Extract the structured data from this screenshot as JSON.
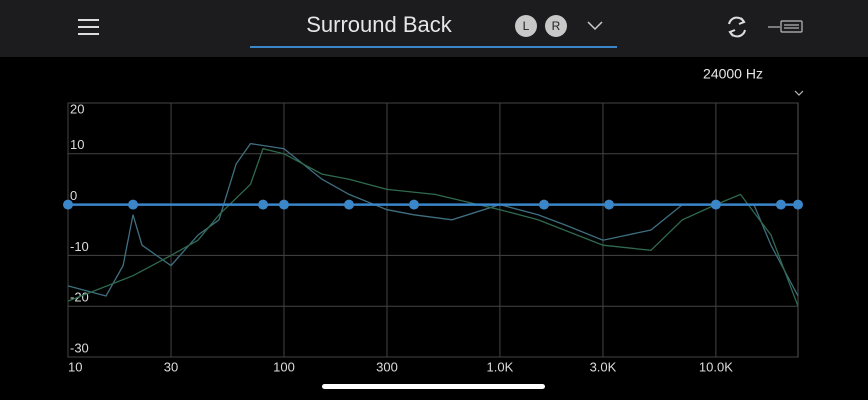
{
  "header": {
    "title": "Surround Back",
    "channels": [
      "L",
      "R"
    ]
  },
  "frequency_label": "24000 Hz",
  "chart_data": {
    "type": "line",
    "log_x": true,
    "grid": true,
    "xlim": [
      10,
      24000
    ],
    "xticks": [
      10,
      30,
      100,
      300,
      {
        "value": 1000,
        "label": "1.0K"
      },
      {
        "value": 3000,
        "label": "3.0K"
      },
      {
        "value": 10000,
        "label": "10.0K"
      }
    ],
    "ylim": [
      -30,
      20
    ],
    "yticks": [
      20,
      10,
      0,
      -10,
      -20,
      -30
    ],
    "series": [
      {
        "color": "#3f6f80",
        "x": [
          10,
          15,
          18,
          20,
          22,
          30,
          40,
          50,
          60,
          70,
          100,
          150,
          200,
          300,
          400,
          600,
          1000,
          1500,
          2000,
          3000,
          5000,
          7000,
          10000,
          15000,
          18000,
          24000
        ],
        "values": [
          -16,
          -18,
          -12,
          -2,
          -8,
          -12,
          -6,
          -3,
          8,
          12,
          11,
          5,
          2,
          -1,
          -2,
          -3,
          0,
          -2,
          -4,
          -7,
          -5,
          0,
          0,
          0,
          -8,
          -18
        ]
      },
      {
        "color": "#2f6a4f",
        "x": [
          10,
          20,
          30,
          40,
          50,
          70,
          80,
          100,
          150,
          200,
          300,
          500,
          1000,
          1500,
          3000,
          5000,
          7000,
          10000,
          13000,
          18000,
          24000
        ],
        "values": [
          -19,
          -14,
          -10,
          -7,
          -2,
          4,
          11,
          10,
          6,
          5,
          3,
          2,
          -1,
          -3,
          -8,
          -9,
          -3,
          0,
          2,
          -6,
          -20
        ]
      },
      {
        "color": "#3a86c8",
        "markers": true,
        "x": [
          10,
          20,
          80,
          100,
          200,
          400,
          1600,
          3200,
          10000,
          20000,
          24000
        ],
        "values": [
          0,
          0,
          0,
          0,
          0,
          0,
          0,
          0,
          0,
          0,
          0
        ]
      }
    ]
  }
}
